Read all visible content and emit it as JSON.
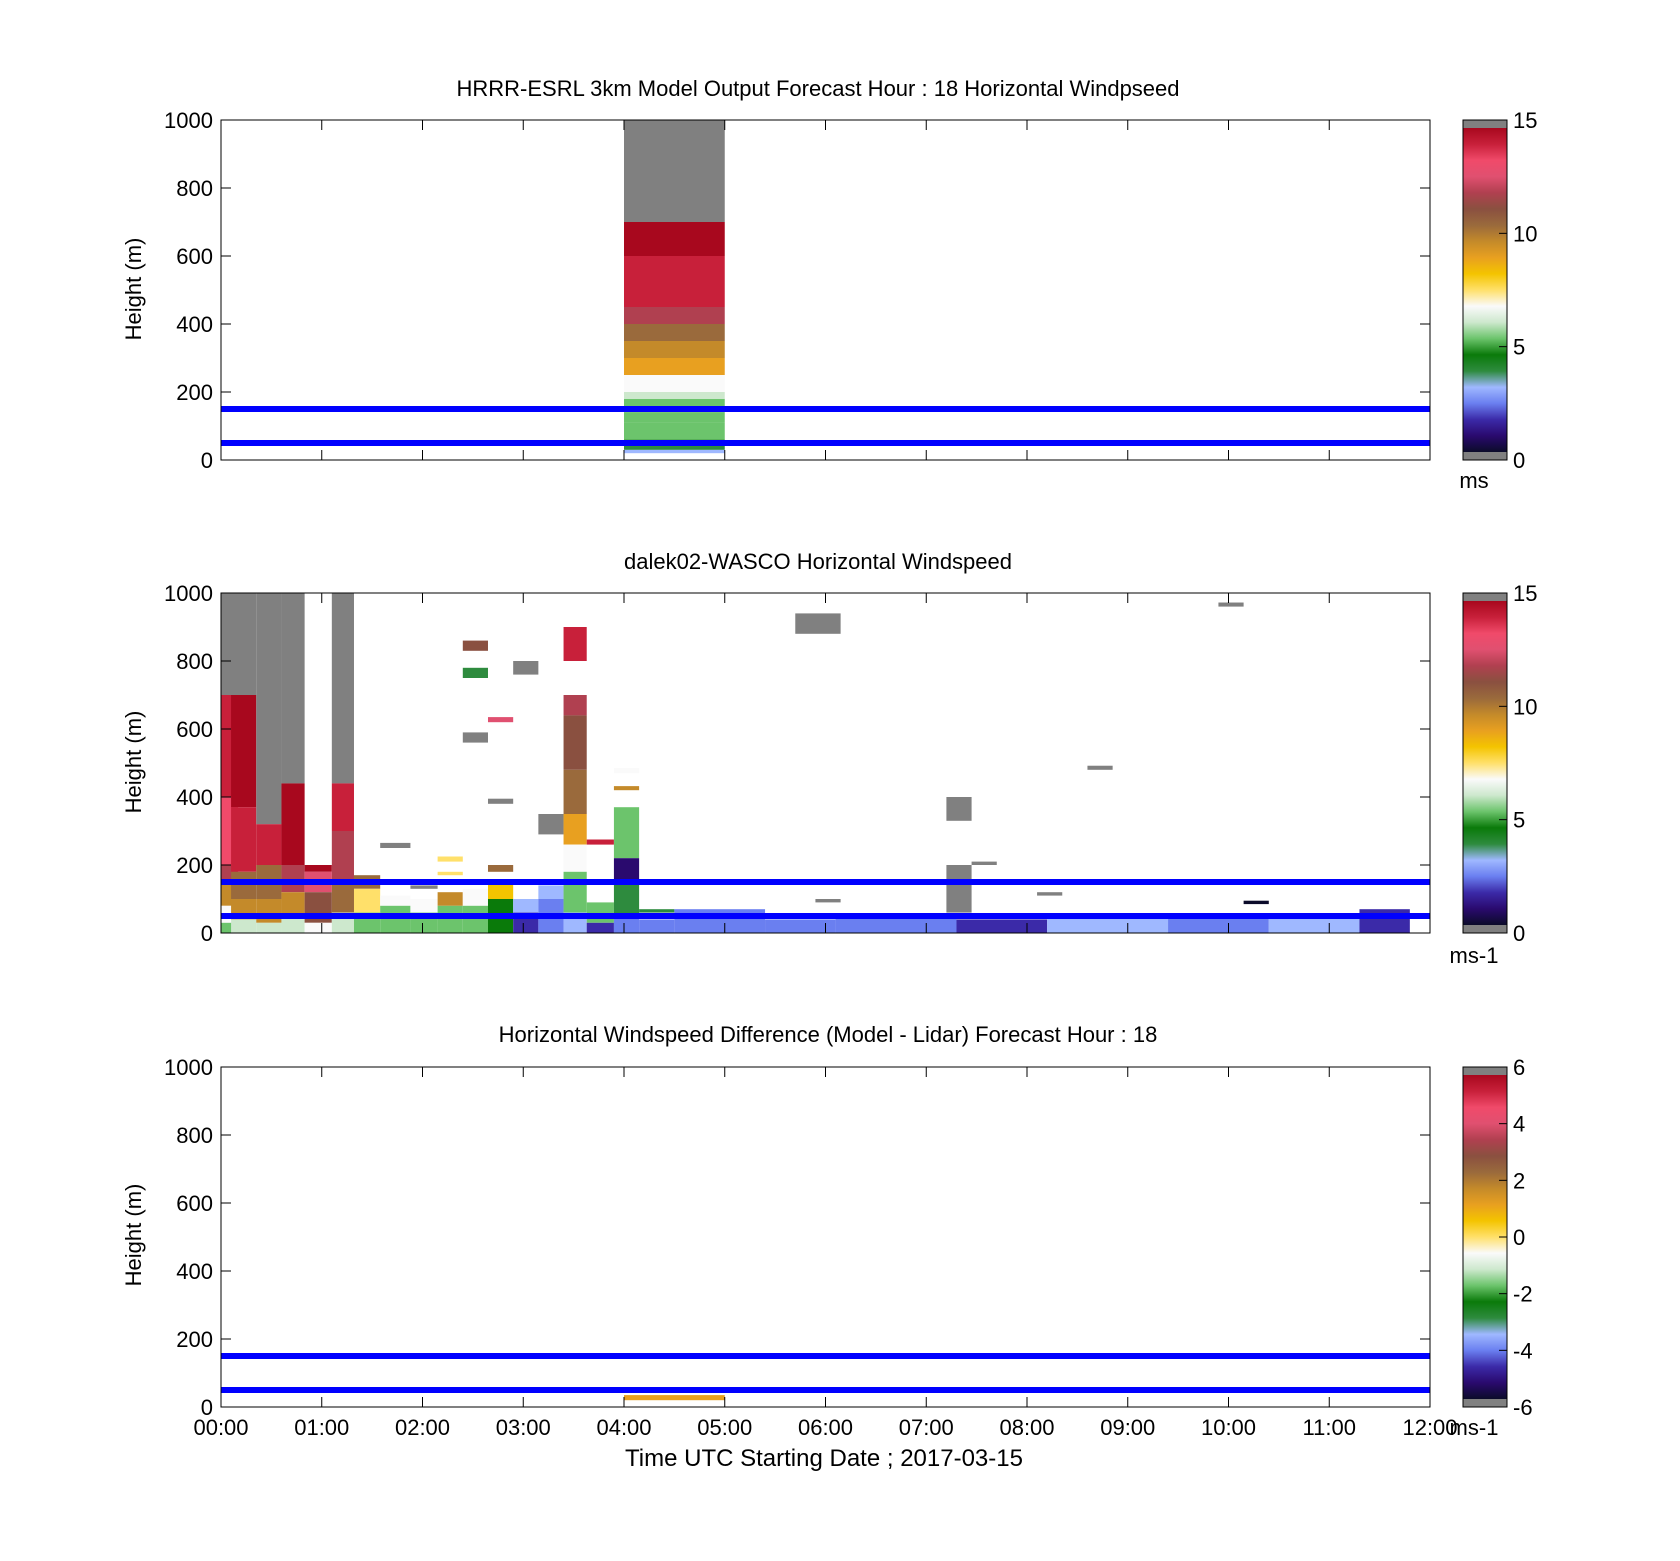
{
  "figure": {
    "xlabel": "Time UTC  Starting Date ; 2017-03-15",
    "x_tick_labels": [
      "00:00",
      "01:00",
      "02:00",
      "03:00",
      "04:00",
      "05:00",
      "06:00",
      "07:00",
      "08:00",
      "09:00",
      "10:00",
      "11:00",
      "12:00"
    ],
    "reference_lines": {
      "heights_m": [
        50,
        150
      ],
      "color": "#0000ff"
    }
  },
  "colors": {
    "colormap_15": [
      "#0b0b2a",
      "#2a0a6e",
      "#3b2aa8",
      "#6a7ff0",
      "#9fb8ff",
      "#2e8b3e",
      "#0a7a0a",
      "#6cc46c",
      "#cde8cd",
      "#fafafa",
      "#ffe06a",
      "#f4c400",
      "#e8a020",
      "#c48a2a",
      "#9a6a3c",
      "#8a5040",
      "#b04050",
      "#e05070",
      "#f04a6a",
      "#c8203a",
      "#a8081e"
    ],
    "outside_range": "#808080"
  },
  "chart_data": [
    {
      "type": "heatmap",
      "title": "HRRR-ESRL 3km Model Output   Forecast Hour : 18 Horizontal Windpseed",
      "ylabel": "Height (m)",
      "xlim": [
        0,
        12
      ],
      "ylim": [
        0,
        1000
      ],
      "y_tick_labels": [
        "0",
        "200",
        "400",
        "600",
        "800",
        "1000"
      ],
      "colorbar": {
        "min": 0,
        "max": 15,
        "ticks": [
          "0",
          "5",
          "10",
          "15"
        ],
        "unit": "ms"
      },
      "cells": [
        {
          "t0": 4,
          "t1": 5,
          "z0": 20,
          "z1": 30,
          "v": 3.5
        },
        {
          "t0": 4,
          "t1": 5,
          "z0": 30,
          "z1": 40,
          "v": 4.0
        },
        {
          "t0": 4,
          "t1": 5,
          "z0": 40,
          "z1": 60,
          "v": 4.8
        },
        {
          "t0": 4,
          "t1": 5,
          "z0": 60,
          "z1": 110,
          "v": 5.2
        },
        {
          "t0": 4,
          "t1": 5,
          "z0": 110,
          "z1": 140,
          "v": 5.0
        },
        {
          "t0": 4,
          "t1": 5,
          "z0": 140,
          "z1": 180,
          "v": 5.6
        },
        {
          "t0": 4,
          "t1": 5,
          "z0": 180,
          "z1": 200,
          "v": 6.3
        },
        {
          "t0": 4,
          "t1": 5,
          "z0": 200,
          "z1": 250,
          "v": 6.8
        },
        {
          "t0": 4,
          "t1": 5,
          "z0": 250,
          "z1": 300,
          "v": 9.0
        },
        {
          "t0": 4,
          "t1": 5,
          "z0": 300,
          "z1": 350,
          "v": 9.5
        },
        {
          "t0": 4,
          "t1": 5,
          "z0": 350,
          "z1": 400,
          "v": 10.6
        },
        {
          "t0": 4,
          "t1": 5,
          "z0": 400,
          "z1": 450,
          "v": 11.6
        },
        {
          "t0": 4,
          "t1": 5,
          "z0": 450,
          "z1": 500,
          "v": 13.6
        },
        {
          "t0": 4,
          "t1": 5,
          "z0": 500,
          "z1": 600,
          "v": 14.0
        },
        {
          "t0": 4,
          "t1": 5,
          "z0": 600,
          "z1": 700,
          "v": 14.6
        },
        {
          "t0": 4,
          "t1": 5,
          "z0": 700,
          "z1": 1000,
          "v": 16.0
        }
      ]
    },
    {
      "type": "heatmap",
      "title": "dalek02-WASCO  Horizontal Windspeed",
      "ylabel": "Height (m)",
      "xlim": [
        0,
        12
      ],
      "ylim": [
        0,
        1000
      ],
      "y_tick_labels": [
        "0",
        "200",
        "400",
        "600",
        "800",
        "1000"
      ],
      "colorbar": {
        "min": 0,
        "max": 15,
        "ticks": [
          "0",
          "5",
          "10",
          "15"
        ],
        "unit": "ms-1"
      },
      "cells": [
        {
          "t0": 0,
          "t1": 0.17,
          "z0": 700,
          "z1": 1000,
          "v": 16.0
        },
        {
          "t0": 0,
          "t1": 0.17,
          "z0": 400,
          "z1": 700,
          "v": 13.8
        },
        {
          "t0": 0,
          "t1": 0.17,
          "z0": 200,
          "z1": 400,
          "v": 13.2
        },
        {
          "t0": 0,
          "t1": 0.17,
          "z0": 150,
          "z1": 200,
          "v": 11.5
        },
        {
          "t0": 0,
          "t1": 0.17,
          "z0": 80,
          "z1": 150,
          "v": 9.5
        },
        {
          "t0": 0,
          "t1": 0.17,
          "z0": 30,
          "z1": 80,
          "v": 6.5
        },
        {
          "t0": 0,
          "t1": 0.17,
          "z0": 0,
          "z1": 30,
          "v": 5.0
        },
        {
          "t0": 0.1,
          "t1": 0.35,
          "z0": 700,
          "z1": 1000,
          "v": 16.0
        },
        {
          "t0": 0.1,
          "t1": 0.35,
          "z0": 370,
          "z1": 700,
          "v": 14.6
        },
        {
          "t0": 0.1,
          "t1": 0.35,
          "z0": 180,
          "z1": 370,
          "v": 13.6
        },
        {
          "t0": 0.1,
          "t1": 0.35,
          "z0": 100,
          "z1": 180,
          "v": 10.5
        },
        {
          "t0": 0.1,
          "t1": 0.35,
          "z0": 40,
          "z1": 100,
          "v": 9.3
        },
        {
          "t0": 0.1,
          "t1": 0.35,
          "z0": 0,
          "z1": 40,
          "v": 6.0
        },
        {
          "t0": 0.35,
          "t1": 0.6,
          "z0": 320,
          "z1": 1000,
          "v": 16.0
        },
        {
          "t0": 0.35,
          "t1": 0.6,
          "z0": 200,
          "z1": 320,
          "v": 13.6
        },
        {
          "t0": 0.35,
          "t1": 0.6,
          "z0": 100,
          "z1": 200,
          "v": 10.6
        },
        {
          "t0": 0.35,
          "t1": 0.6,
          "z0": 30,
          "z1": 100,
          "v": 9.3
        },
        {
          "t0": 0.35,
          "t1": 0.6,
          "z0": 0,
          "z1": 30,
          "v": 6.0
        },
        {
          "t0": 0.6,
          "t1": 0.83,
          "z0": 440,
          "z1": 1000,
          "v": 16.0
        },
        {
          "t0": 0.6,
          "t1": 0.83,
          "z0": 200,
          "z1": 440,
          "v": 14.6
        },
        {
          "t0": 0.6,
          "t1": 0.83,
          "z0": 120,
          "z1": 200,
          "v": 12.0
        },
        {
          "t0": 0.6,
          "t1": 0.83,
          "z0": 50,
          "z1": 120,
          "v": 9.5
        },
        {
          "t0": 0.6,
          "t1": 0.83,
          "z0": 0,
          "z1": 50,
          "v": 6.2
        },
        {
          "t0": 0.83,
          "t1": 1.1,
          "z0": 180,
          "z1": 200,
          "v": 14.6
        },
        {
          "t0": 0.83,
          "t1": 1.1,
          "z0": 120,
          "z1": 180,
          "v": 12.5
        },
        {
          "t0": 0.83,
          "t1": 1.1,
          "z0": 30,
          "z1": 120,
          "v": 11.0
        },
        {
          "t0": 0.83,
          "t1": 1.1,
          "z0": 0,
          "z1": 30,
          "v": 6.5
        },
        {
          "t0": 1.1,
          "t1": 1.32,
          "z0": 440,
          "z1": 1000,
          "v": 16.0
        },
        {
          "t0": 1.1,
          "t1": 1.32,
          "z0": 300,
          "z1": 440,
          "v": 14.0
        },
        {
          "t0": 1.1,
          "t1": 1.32,
          "z0": 150,
          "z1": 300,
          "v": 12.0
        },
        {
          "t0": 1.1,
          "t1": 1.32,
          "z0": 60,
          "z1": 150,
          "v": 10.0
        },
        {
          "t0": 1.1,
          "t1": 1.32,
          "z0": 0,
          "z1": 60,
          "v": 6.0
        },
        {
          "t0": 1.32,
          "t1": 1.58,
          "z0": 130,
          "z1": 170,
          "v": 10.0
        },
        {
          "t0": 1.32,
          "t1": 1.58,
          "z0": 60,
          "z1": 130,
          "v": 7.5
        },
        {
          "t0": 1.32,
          "t1": 1.58,
          "z0": 0,
          "z1": 60,
          "v": 5.0
        },
        {
          "t0": 1.58,
          "t1": 1.88,
          "z0": 250,
          "z1": 265,
          "v": 16.0
        },
        {
          "t0": 1.58,
          "t1": 1.88,
          "z0": 80,
          "z1": 110,
          "v": 7.0
        },
        {
          "t0": 1.58,
          "t1": 1.88,
          "z0": 0,
          "z1": 80,
          "v": 5.5
        },
        {
          "t0": 1.88,
          "t1": 2.15,
          "z0": 130,
          "z1": 140,
          "v": 16.0
        },
        {
          "t0": 1.88,
          "t1": 2.15,
          "z0": 60,
          "z1": 100,
          "v": 6.8
        },
        {
          "t0": 1.88,
          "t1": 2.15,
          "z0": 0,
          "z1": 60,
          "v": 5.5
        },
        {
          "t0": 2.15,
          "t1": 2.4,
          "z0": 210,
          "z1": 225,
          "v": 7.5
        },
        {
          "t0": 2.15,
          "t1": 2.4,
          "z0": 170,
          "z1": 180,
          "v": 7.8
        },
        {
          "t0": 2.15,
          "t1": 2.4,
          "z0": 80,
          "z1": 120,
          "v": 9.5
        },
        {
          "t0": 2.15,
          "t1": 2.4,
          "z0": 0,
          "z1": 80,
          "v": 5.2
        },
        {
          "t0": 2.4,
          "t1": 2.65,
          "z0": 830,
          "z1": 860,
          "v": 10.8
        },
        {
          "t0": 2.4,
          "t1": 2.65,
          "z0": 750,
          "z1": 780,
          "v": 3.6
        },
        {
          "t0": 2.4,
          "t1": 2.65,
          "z0": 560,
          "z1": 590,
          "v": 16.0
        },
        {
          "t0": 2.4,
          "t1": 2.65,
          "z0": 80,
          "z1": 130,
          "v": 7.0
        },
        {
          "t0": 2.4,
          "t1": 2.65,
          "z0": 0,
          "z1": 80,
          "v": 5.3
        },
        {
          "t0": 2.65,
          "t1": 2.9,
          "z0": 620,
          "z1": 635,
          "v": 12.5
        },
        {
          "t0": 2.65,
          "t1": 2.9,
          "z0": 380,
          "z1": 395,
          "v": 16.0
        },
        {
          "t0": 2.65,
          "t1": 2.9,
          "z0": 180,
          "z1": 200,
          "v": 10.0
        },
        {
          "t0": 2.65,
          "t1": 2.9,
          "z0": 100,
          "z1": 150,
          "v": 8.0
        },
        {
          "t0": 2.65,
          "t1": 2.9,
          "z0": 0,
          "z1": 100,
          "v": 4.6
        },
        {
          "t0": 2.9,
          "t1": 3.15,
          "z0": 760,
          "z1": 800,
          "v": 16.0
        },
        {
          "t0": 2.9,
          "t1": 3.15,
          "z0": 60,
          "z1": 100,
          "v": 3.2
        },
        {
          "t0": 2.9,
          "t1": 3.15,
          "z0": 0,
          "z1": 60,
          "v": 2.0
        },
        {
          "t0": 3.15,
          "t1": 3.4,
          "z0": 290,
          "z1": 350,
          "v": 16.0
        },
        {
          "t0": 3.15,
          "t1": 3.4,
          "z0": 100,
          "z1": 140,
          "v": 3.5
        },
        {
          "t0": 3.15,
          "t1": 3.4,
          "z0": 0,
          "z1": 100,
          "v": 2.2
        },
        {
          "t0": 3.4,
          "t1": 3.63,
          "z0": 640,
          "z1": 700,
          "v": 12.0
        },
        {
          "t0": 3.4,
          "t1": 3.63,
          "z0": 480,
          "z1": 640,
          "v": 11.0
        },
        {
          "t0": 3.4,
          "t1": 3.63,
          "z0": 350,
          "z1": 480,
          "v": 10.0
        },
        {
          "t0": 3.4,
          "t1": 3.63,
          "z0": 260,
          "z1": 350,
          "v": 9.0
        },
        {
          "t0": 3.4,
          "t1": 3.63,
          "z0": 180,
          "z1": 260,
          "v": 6.8
        },
        {
          "t0": 3.4,
          "t1": 3.63,
          "z0": 60,
          "z1": 180,
          "v": 5.2
        },
        {
          "t0": 3.4,
          "t1": 3.63,
          "z0": 0,
          "z1": 60,
          "v": 3.5
        },
        {
          "t0": 3.4,
          "t1": 3.63,
          "z0": 800,
          "z1": 900,
          "v": 14.0
        },
        {
          "t0": 3.63,
          "t1": 3.9,
          "z0": 260,
          "z1": 275,
          "v": 13.8
        },
        {
          "t0": 3.63,
          "t1": 3.9,
          "z0": 30,
          "z1": 90,
          "v": 5.2
        },
        {
          "t0": 3.63,
          "t1": 3.9,
          "z0": 0,
          "z1": 30,
          "v": 2.0
        },
        {
          "t0": 3.9,
          "t1": 4.15,
          "z0": 470,
          "z1": 485,
          "v": 6.5
        },
        {
          "t0": 3.9,
          "t1": 4.15,
          "z0": 420,
          "z1": 432,
          "v": 9.6
        },
        {
          "t0": 3.9,
          "t1": 4.15,
          "z0": 220,
          "z1": 370,
          "v": 5.2
        },
        {
          "t0": 3.9,
          "t1": 4.15,
          "z0": 150,
          "z1": 220,
          "v": 1.2
        },
        {
          "t0": 3.9,
          "t1": 4.15,
          "z0": 50,
          "z1": 150,
          "v": 3.8
        },
        {
          "t0": 3.9,
          "t1": 4.15,
          "z0": 0,
          "z1": 50,
          "v": 2.3
        },
        {
          "t0": 4.15,
          "t1": 4.5,
          "z0": 60,
          "z1": 70,
          "v": 3.6
        },
        {
          "t0": 4.15,
          "t1": 4.5,
          "z0": 0,
          "z1": 40,
          "v": 2.4
        },
        {
          "t0": 4.5,
          "t1": 5.4,
          "z0": 0,
          "z1": 70,
          "v": 2.2
        },
        {
          "t0": 5.4,
          "t1": 6.1,
          "z0": 0,
          "z1": 40,
          "v": 2.8
        },
        {
          "t0": 6.1,
          "t1": 7.3,
          "z0": 0,
          "z1": 50,
          "v": 2.4
        },
        {
          "t0": 7.3,
          "t1": 8.2,
          "z0": 0,
          "z1": 40,
          "v": 2.0
        },
        {
          "t0": 8.2,
          "t1": 9.4,
          "z0": 0,
          "z1": 50,
          "v": 3.2
        },
        {
          "t0": 9.4,
          "t1": 10.4,
          "z0": 0,
          "z1": 50,
          "v": 2.4
        },
        {
          "t0": 10.4,
          "t1": 11.3,
          "z0": 0,
          "z1": 50,
          "v": 3.0
        },
        {
          "t0": 11.3,
          "t1": 11.8,
          "z0": 0,
          "z1": 70,
          "v": 2.0
        },
        {
          "t0": 5.7,
          "t1": 6.15,
          "z0": 880,
          "z1": 940,
          "v": 16.0
        },
        {
          "t0": 5.9,
          "t1": 6.15,
          "z0": 90,
          "z1": 100,
          "v": 16.0
        },
        {
          "t0": 7.2,
          "t1": 7.45,
          "z0": 330,
          "z1": 400,
          "v": 16.0
        },
        {
          "t0": 7.2,
          "t1": 7.45,
          "z0": 60,
          "z1": 200,
          "v": 16.0
        },
        {
          "t0": 7.45,
          "t1": 7.7,
          "z0": 200,
          "z1": 210,
          "v": 16.0
        },
        {
          "t0": 8.1,
          "t1": 8.35,
          "z0": 110,
          "z1": 120,
          "v": 16.0
        },
        {
          "t0": 8.6,
          "t1": 8.85,
          "z0": 480,
          "z1": 492,
          "v": 16.0
        },
        {
          "t0": 9.9,
          "t1": 10.15,
          "z0": 960,
          "z1": 972,
          "v": 16.0
        },
        {
          "t0": 10.15,
          "t1": 10.4,
          "z0": 85,
          "z1": 95,
          "v": 0.6
        }
      ]
    },
    {
      "type": "heatmap",
      "title": "Horizontal Windspeed Difference (Model - Lidar) Forecast Hour : 18",
      "ylabel": "Height (m)",
      "xlim": [
        0,
        12
      ],
      "ylim": [
        0,
        1000
      ],
      "y_tick_labels": [
        "0",
        "200",
        "400",
        "600",
        "800",
        "1000"
      ],
      "colorbar": {
        "min": -6,
        "max": 6,
        "ticks": [
          "-6",
          "-4",
          "-2",
          "0",
          "2",
          "4",
          "6"
        ],
        "unit": "ms-1"
      },
      "cells": [
        {
          "t0": 4,
          "t1": 5,
          "z0": 20,
          "z1": 35,
          "v": 0.9
        }
      ]
    }
  ]
}
